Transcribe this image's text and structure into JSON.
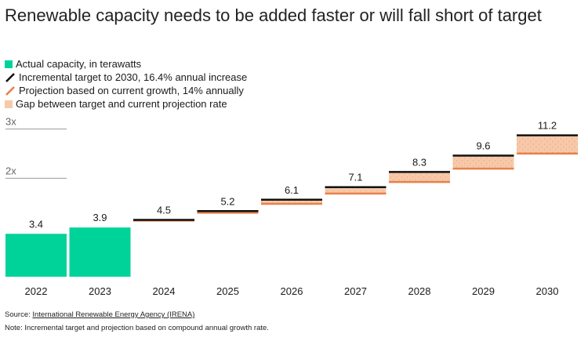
{
  "chart_data": {
    "type": "bar",
    "title": "Renewable capacity needs to be added faster or will fall short of target",
    "categories": [
      "2022",
      "2023",
      "2024",
      "2025",
      "2026",
      "2027",
      "2028",
      "2029",
      "2030"
    ],
    "actual": [
      3.4,
      3.9,
      null,
      null,
      null,
      null,
      null,
      null,
      null
    ],
    "series": [
      {
        "name": "Actual capacity, in terawatts",
        "values": [
          3.4,
          3.9,
          null,
          null,
          null,
          null,
          null,
          null,
          null
        ]
      },
      {
        "name": "Incremental target to 2030, 16.4% annual increase",
        "values": [
          null,
          null,
          4.5,
          5.2,
          6.1,
          7.1,
          8.3,
          9.6,
          11.2
        ]
      },
      {
        "name": "Projection based on current growth, 14% annually",
        "values": [
          null,
          null,
          4.45,
          5.07,
          5.78,
          6.59,
          7.51,
          8.56,
          9.76
        ]
      }
    ],
    "value_labels": [
      "3.4",
      "3.9",
      "4.5",
      "5.2",
      "6.1",
      "7.1",
      "8.3",
      "9.6",
      "11.2"
    ],
    "reference_lines": [
      {
        "label": "3x",
        "value": 11.7
      },
      {
        "label": "2x",
        "value": 7.8
      }
    ],
    "ylim": [
      0,
      13
    ],
    "xlabel": "",
    "ylabel": ""
  },
  "legend": {
    "actual": "Actual capacity, in terawatts",
    "target": "Incremental target to 2030, 16.4% annual increase",
    "projection": "Projection based on current growth, 14% annually",
    "gap": "Gap between target and current projection rate"
  },
  "footer": {
    "source_prefix": "Source: ",
    "source_link": "International Renewable Energy Agency (IRENA)",
    "note": "Note: Incremental target and projection based on compound annual growth rate."
  },
  "colors": {
    "actual": "#00d39a",
    "target": "#111111",
    "projection": "#e8804a",
    "gap": "#f7c9a9",
    "gridline": "#999999"
  }
}
